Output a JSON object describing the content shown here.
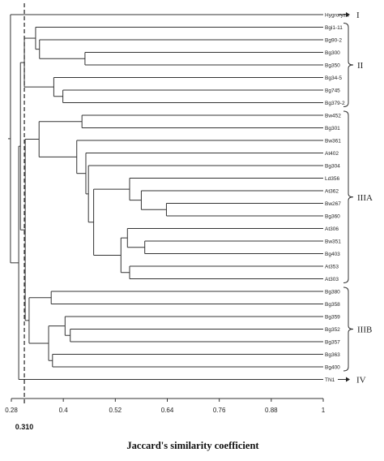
{
  "chart_data": {
    "type": "dendrogram",
    "xlabel": "Jaccard's similarity coefficient",
    "x_ticks": [
      0.28,
      0.4,
      0.52,
      0.64,
      0.76,
      0.88,
      1
    ],
    "x_tick_labels": [
      "0.28",
      "0.4",
      "0.52",
      "0.64",
      "0.76",
      "0.88",
      "1"
    ],
    "xlim": [
      0.28,
      1
    ],
    "threshold": {
      "value": 0.31,
      "label": "0.310"
    },
    "leaves": [
      "Hygroryza",
      "Bgi1-11",
      "Bg90-2",
      "Bg300",
      "Bg350",
      "Bg34-5",
      "Bg745",
      "Bg379-2",
      "Bw452",
      "Bg301",
      "Bw361",
      "At402",
      "Bg304",
      "Ld356",
      "At362",
      "Bw267",
      "Bg360",
      "At306",
      "Bw351",
      "Bg403",
      "At353",
      "At303",
      "Bg380",
      "Bg358",
      "Bg359",
      "Bg352",
      "Bg357",
      "Bg363",
      "Bg400",
      "TN1"
    ],
    "merges": [
      {
        "id": "m1",
        "children": [
          "Bg300",
          "Bg350"
        ],
        "similarity": 0.45
      },
      {
        "id": "m2",
        "children": [
          "Bg90-2",
          "m1"
        ],
        "similarity": 0.345
      },
      {
        "id": "m3",
        "children": [
          "Bgi1-11",
          "m2"
        ],
        "similarity": 0.336
      },
      {
        "id": "m4",
        "children": [
          "Bg745",
          "Bg379-2"
        ],
        "similarity": 0.399
      },
      {
        "id": "m5",
        "children": [
          "Bg34-5",
          "m4"
        ],
        "similarity": 0.378
      },
      {
        "id": "m6",
        "children": [
          "m3",
          "m5"
        ],
        "similarity": 0.31
      },
      {
        "id": "m7",
        "children": [
          "Bw452",
          "Bg301"
        ],
        "similarity": 0.443
      },
      {
        "id": "m8",
        "children": [
          "Bw267",
          "Bg360"
        ],
        "similarity": 0.638
      },
      {
        "id": "m9",
        "children": [
          "At362",
          "m8"
        ],
        "similarity": 0.58
      },
      {
        "id": "m10",
        "children": [
          "Ld356",
          "m9"
        ],
        "similarity": 0.553
      },
      {
        "id": "m11",
        "children": [
          "Bw351",
          "Bg403"
        ],
        "similarity": 0.588
      },
      {
        "id": "m12",
        "children": [
          "At306",
          "m11"
        ],
        "similarity": 0.548
      },
      {
        "id": "m13",
        "children": [
          "At353",
          "At303"
        ],
        "similarity": 0.553
      },
      {
        "id": "m14",
        "children": [
          "m12",
          "m13"
        ],
        "similarity": 0.533
      },
      {
        "id": "m15",
        "children": [
          "m10",
          "m14"
        ],
        "similarity": 0.47
      },
      {
        "id": "m16",
        "children": [
          "Bg304",
          "m15"
        ],
        "similarity": 0.458
      },
      {
        "id": "m17",
        "children": [
          "At402",
          "m16"
        ],
        "similarity": 0.452
      },
      {
        "id": "m18",
        "children": [
          "Bw361",
          "m17"
        ],
        "similarity": 0.431
      },
      {
        "id": "m19",
        "children": [
          "m7",
          "m18"
        ],
        "similarity": 0.344
      },
      {
        "id": "m20",
        "children": [
          "Bg380",
          "Bg358"
        ],
        "similarity": 0.372
      },
      {
        "id": "m21",
        "children": [
          "Bg352",
          "Bg357"
        ],
        "similarity": 0.416
      },
      {
        "id": "m22",
        "children": [
          "Bg359",
          "m21"
        ],
        "similarity": 0.404
      },
      {
        "id": "m23",
        "children": [
          "Bg363",
          "Bg400"
        ],
        "similarity": 0.375
      },
      {
        "id": "m24",
        "children": [
          "m22",
          "m23"
        ],
        "similarity": 0.366
      },
      {
        "id": "m25",
        "children": [
          "m20",
          "m24"
        ],
        "similarity": 0.321
      },
      {
        "id": "m26",
        "children": [
          "m19",
          "m25"
        ],
        "similarity": 0.312
      },
      {
        "id": "m27",
        "children": [
          "m6",
          "m26"
        ],
        "similarity": 0.301
      },
      {
        "id": "m28",
        "children": [
          "m27",
          "TN1"
        ],
        "similarity": 0.297
      },
      {
        "id": "m29",
        "children": [
          "Hygroryza",
          "m28"
        ],
        "similarity": 0.278
      }
    ],
    "groups": [
      {
        "label": "I",
        "first": "Hygroryza",
        "last": "Hygroryza",
        "marker": "arrow"
      },
      {
        "label": "II",
        "first": "Bgi1-11",
        "last": "Bg379-2",
        "marker": "brace"
      },
      {
        "label": "IIIA",
        "first": "Bw452",
        "last": "At303",
        "marker": "brace"
      },
      {
        "label": "IIIB",
        "first": "Bg380",
        "last": "Bg400",
        "marker": "brace"
      },
      {
        "label": "IV",
        "first": "TN1",
        "last": "TN1",
        "marker": "arrow"
      }
    ]
  }
}
